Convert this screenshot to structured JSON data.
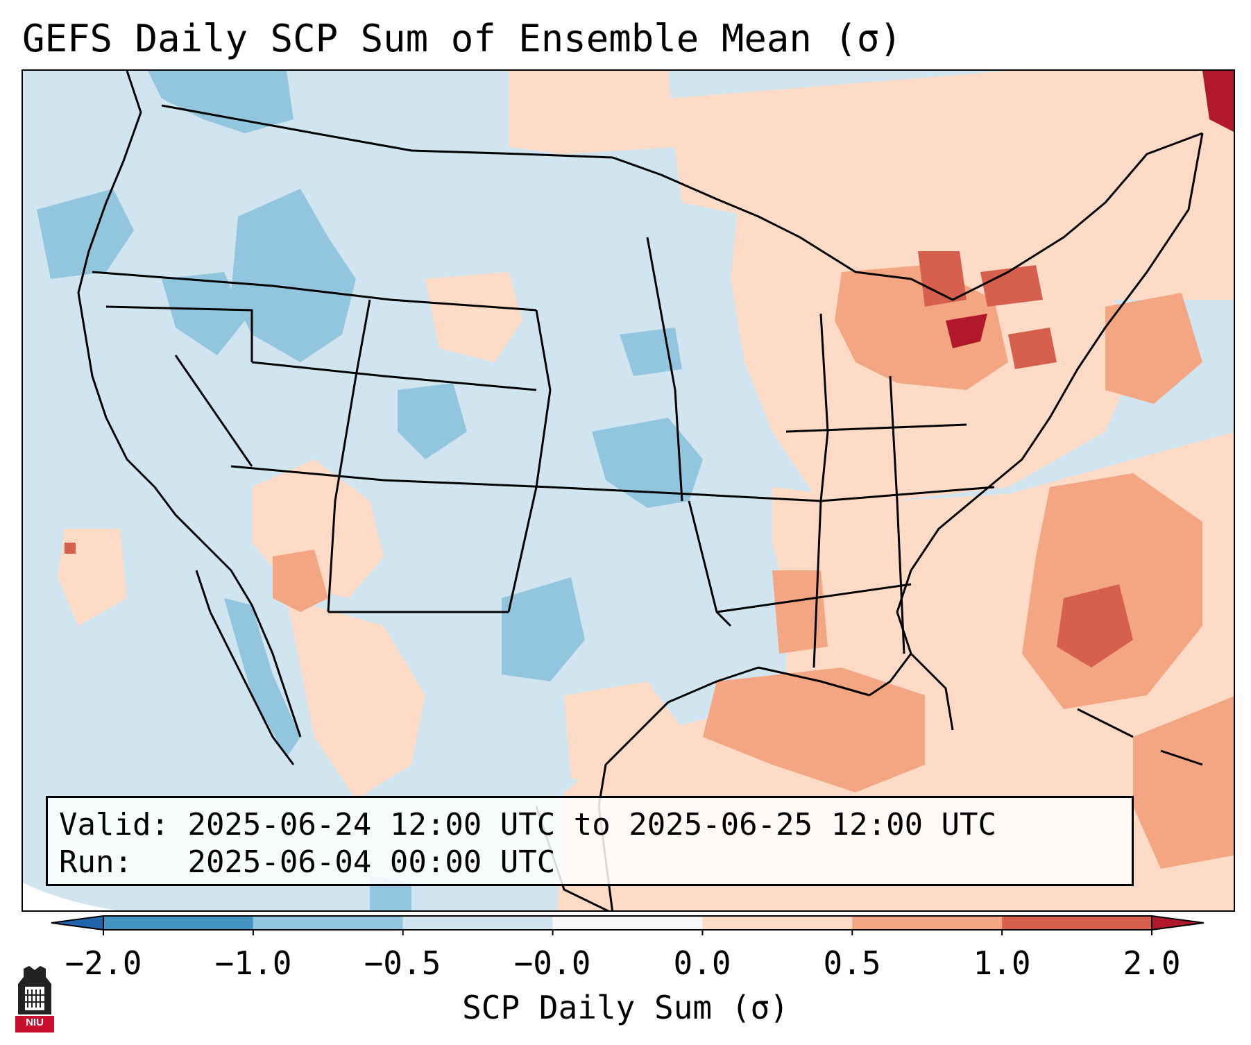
{
  "title": "GEFS Daily SCP Sum of Ensemble Mean (σ)",
  "info": {
    "valid_label": "Valid:",
    "valid_value": "2025-06-24 12:00 UTC to 2025-06-25 12:00 UTC",
    "run_label": "Run:",
    "run_value": "2025-06-04 00:00 UTC"
  },
  "colorbar": {
    "label": "SCP Daily Sum (σ)",
    "ticks": [
      "−2.0",
      "−1.0",
      "−0.5",
      "−0.0",
      "0.0",
      "0.5",
      "1.0",
      "2.0"
    ],
    "bin_colors": [
      "#2166ac",
      "#4393c3",
      "#92c5de",
      "#d1e5f0",
      "#f7f7f7",
      "#fddbc7",
      "#f4a582",
      "#d6604d",
      "#b2182b"
    ],
    "extend": "both"
  },
  "map": {
    "region": "Continental United States",
    "projection": "Lambert conformal",
    "background_color": "#d1e5f0",
    "positive_anomaly_regions": [
      "Great Lakes",
      "Lower Michigan",
      "Lake Erie / Lake Ontario",
      "Northeast",
      "Gulf Coast",
      "Western Atlantic",
      "Southwest",
      "Northern Plains"
    ],
    "negative_anomaly_regions": [
      "Idaho / Montana",
      "Pacific Northwest",
      "Kansas",
      "West Texas",
      "Colorado"
    ]
  },
  "logo": {
    "text": "NIU",
    "bg_color": "#c8102e"
  }
}
